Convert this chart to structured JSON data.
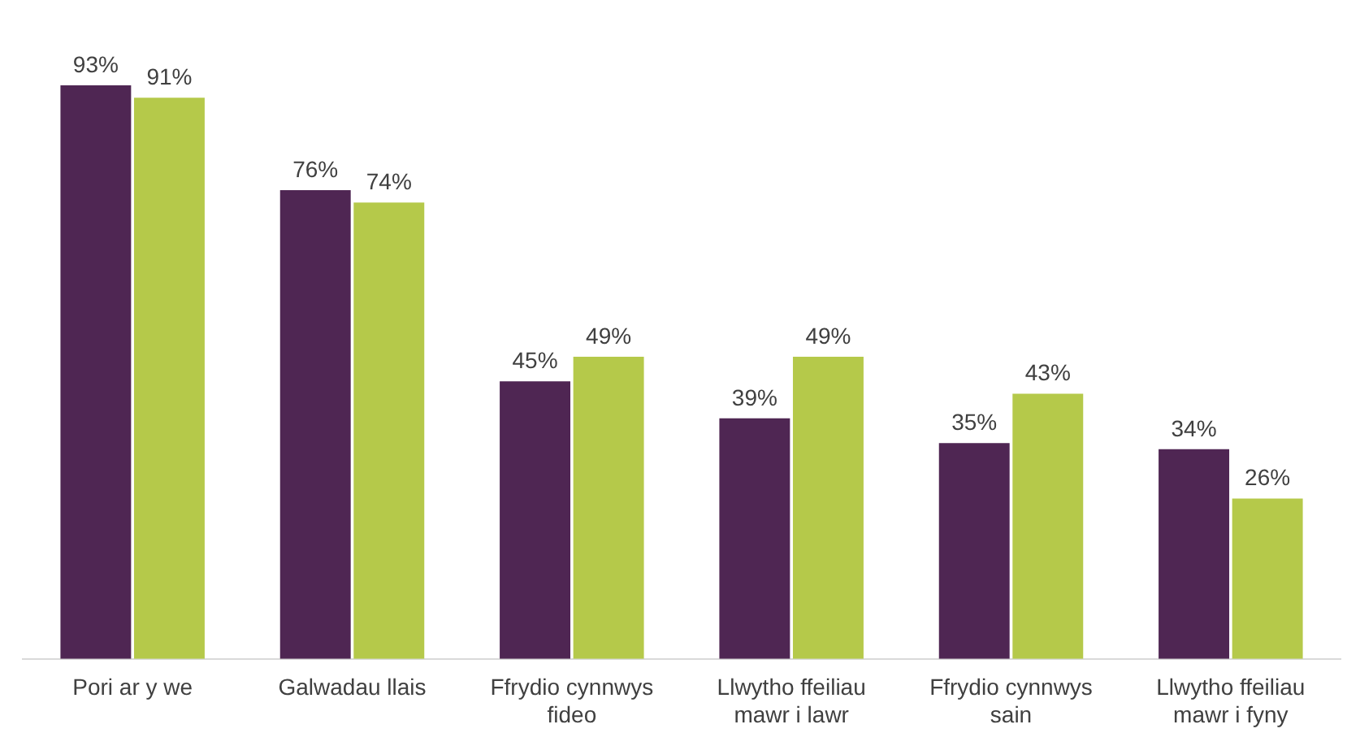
{
  "chart_data": {
    "type": "bar",
    "categories": [
      "Pori ar y we",
      "Galwadau llais",
      "Ffrydio cynnwys fideo",
      "Llwytho ffeiliau mawr i lawr",
      "Ffrydio cynnwys sain",
      "Llwytho ffeiliau mawr i fyny"
    ],
    "series": [
      {
        "color": "#4f2653",
        "values": [
          93,
          76,
          45,
          39,
          35,
          34
        ],
        "value_labels": [
          "93%",
          "76%",
          "45%",
          "39%",
          "35%",
          "34%"
        ]
      },
      {
        "color": "#b5c94a",
        "values": [
          91,
          74,
          49,
          49,
          43,
          26
        ],
        "value_labels": [
          "91%",
          "74%",
          "49%",
          "49%",
          "43%",
          "26%"
        ]
      }
    ],
    "grid": false,
    "legend": false,
    "tick_labels": "x"
  }
}
